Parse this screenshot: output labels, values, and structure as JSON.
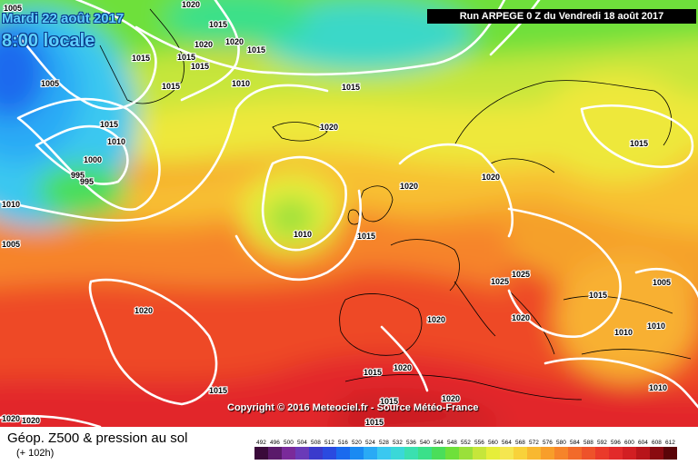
{
  "header": {
    "date_line1": "Mardi 22 août 2017",
    "date_line2": "8:00 locale",
    "run_title": "Run ARPEGE 0 Z du Vendredi 18 août 2017"
  },
  "footer": {
    "product_title": "Géop. Z500 & pression au sol",
    "product_subtitle": "(+ 102h)",
    "copyright": "Copyright © 2016 Meteociel.fr - Source Météo-France"
  },
  "legend": {
    "ticks": [
      "492",
      "496",
      "500",
      "504",
      "508",
      "512",
      "516",
      "520",
      "524",
      "528",
      "532",
      "536",
      "540",
      "544",
      "548",
      "552",
      "556",
      "560",
      "564",
      "568",
      "572",
      "576",
      "580",
      "584",
      "588",
      "592",
      "596",
      "600",
      "604",
      "608",
      "612"
    ],
    "colors": [
      "#3a0a3a",
      "#5a1a6a",
      "#7a2a9a",
      "#6a3ab8",
      "#3a3acc",
      "#2a4ae0",
      "#1a6aee",
      "#1a8af2",
      "#2aaaf5",
      "#3ac8f0",
      "#3ad8d8",
      "#3ae0b0",
      "#3ae08a",
      "#4ade5a",
      "#6ee03a",
      "#9ae03a",
      "#c6e63a",
      "#e6ee3a",
      "#f5e650",
      "#f8d23a",
      "#f8b830",
      "#f89e2a",
      "#f6842a",
      "#f26a2a",
      "#ee522a",
      "#ea3a2a",
      "#e22a2a",
      "#d21e22",
      "#b8141a",
      "#8a0a10",
      "#5a0408"
    ]
  },
  "isobars": [
    {
      "label": "1005",
      "at": "Greenland west coast"
    },
    {
      "label": "1015",
      "at": "north of Labrador Sea"
    },
    {
      "label": "1015",
      "at": "southern Greenland"
    },
    {
      "label": "1010",
      "at": "southern Greenland"
    },
    {
      "label": "1000",
      "at": "low south of Greenland"
    },
    {
      "label": "995",
      "at": "low south of Greenland"
    },
    {
      "label": "995",
      "at": "low south of Greenland"
    },
    {
      "label": "1010",
      "at": "Labrador"
    },
    {
      "label": "1005",
      "at": "Labrador"
    },
    {
      "label": "1015",
      "at": "Iceland"
    },
    {
      "label": "1020",
      "at": "Iceland"
    },
    {
      "label": "1020",
      "at": "Iceland"
    },
    {
      "label": "1015",
      "at": "Iceland"
    },
    {
      "label": "1015",
      "at": "Iceland"
    },
    {
      "label": "1015",
      "at": "Iceland south"
    },
    {
      "label": "1015",
      "at": "Iceland south"
    },
    {
      "label": "1010",
      "at": "Iceland south"
    },
    {
      "label": "1015",
      "at": "Norwegian Sea"
    },
    {
      "label": "1020",
      "at": "North Atlantic"
    },
    {
      "label": "1010",
      "at": "low west of Ireland"
    },
    {
      "label": "1015",
      "at": "Ireland"
    },
    {
      "label": "1020",
      "at": "North Sea"
    },
    {
      "label": "1020",
      "at": "Norway"
    },
    {
      "label": "1015",
      "at": "Finland"
    },
    {
      "label": "1025",
      "at": "Alps"
    },
    {
      "label": "1025",
      "at": "Balkans"
    },
    {
      "label": "1020",
      "at": "Balkans"
    },
    {
      "label": "1015",
      "at": "Black Sea"
    },
    {
      "label": "1005",
      "at": "Caspian"
    },
    {
      "label": "1010",
      "at": "Turkey"
    },
    {
      "label": "1010",
      "at": "Turkey"
    },
    {
      "label": "1010",
      "at": "Middle East"
    },
    {
      "label": "1020",
      "at": "Azores"
    },
    {
      "label": "1020",
      "at": "Iberia"
    },
    {
      "label": "1020",
      "at": "Morocco"
    },
    {
      "label": "1015",
      "at": "Morocco"
    },
    {
      "label": "1015",
      "at": "Atlantic south"
    },
    {
      "label": "1020",
      "at": "Sahara"
    },
    {
      "label": "1015",
      "at": "Sahara"
    },
    {
      "label": "1015",
      "at": "Libya"
    },
    {
      "label": "1020",
      "at": "Atlantic southwest"
    },
    {
      "label": "1020",
      "at": "Atlantic southwest"
    },
    {
      "label": "1005",
      "at": "Greenland north"
    },
    {
      "label": "1020",
      "at": "Greenland north"
    }
  ]
}
